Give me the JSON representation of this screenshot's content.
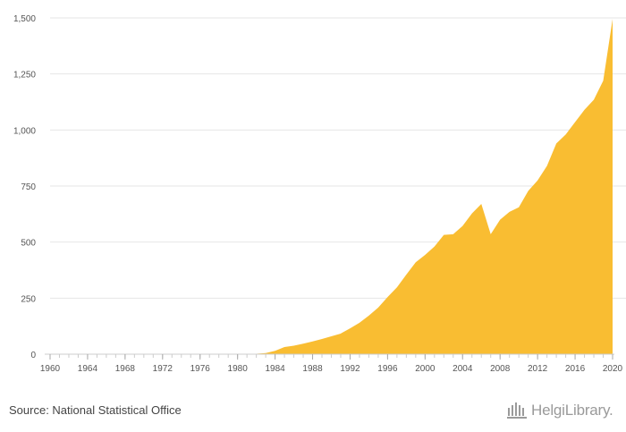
{
  "chart_data": {
    "type": "area",
    "x": [
      1960,
      1961,
      1962,
      1963,
      1964,
      1965,
      1966,
      1967,
      1968,
      1969,
      1970,
      1971,
      1972,
      1973,
      1974,
      1975,
      1976,
      1977,
      1978,
      1979,
      1980,
      1981,
      1982,
      1983,
      1984,
      1985,
      1986,
      1987,
      1988,
      1989,
      1990,
      1991,
      1992,
      1993,
      1994,
      1995,
      1996,
      1997,
      1998,
      1999,
      2000,
      2001,
      2002,
      2003,
      2004,
      2005,
      2006,
      2007,
      2008,
      2009,
      2010,
      2011,
      2012,
      2013,
      2014,
      2015,
      2016,
      2017,
      2018,
      2019,
      2020
    ],
    "series": [
      {
        "values": [
          1,
          1,
          1,
          1,
          1,
          1,
          1,
          1,
          1,
          1,
          1,
          1,
          1,
          1,
          1,
          1,
          1,
          1,
          1,
          1,
          1,
          1,
          2,
          5,
          15,
          32,
          38,
          47,
          57,
          68,
          80,
          92,
          115,
          140,
          172,
          208,
          255,
          298,
          355,
          410,
          443,
          480,
          532,
          535,
          572,
          628,
          670,
          535,
          600,
          635,
          655,
          728,
          775,
          840,
          940,
          980,
          1035,
          1090,
          1135,
          1220,
          1495
        ],
        "color": "#f9bd32"
      }
    ],
    "xticks": [
      "1960",
      "1964",
      "1968",
      "1972",
      "1976",
      "1980",
      "1984",
      "1988",
      "1992",
      "1996",
      "2000",
      "2004",
      "2008",
      "2012",
      "2016",
      "2020"
    ],
    "yticks": [
      "0",
      "250",
      "500",
      "750",
      "1,000",
      "1,250",
      "1,500"
    ],
    "xlim": [
      1960,
      2020
    ],
    "ylim": [
      0,
      1500
    ],
    "grid": true
  },
  "footer": {
    "source": "Source: National Statistical Office",
    "logo_text": "HelgiLibrary."
  },
  "colors": {
    "area": "#f9bd32",
    "grid": "#e6e6e6",
    "axis": "#cccccc"
  }
}
